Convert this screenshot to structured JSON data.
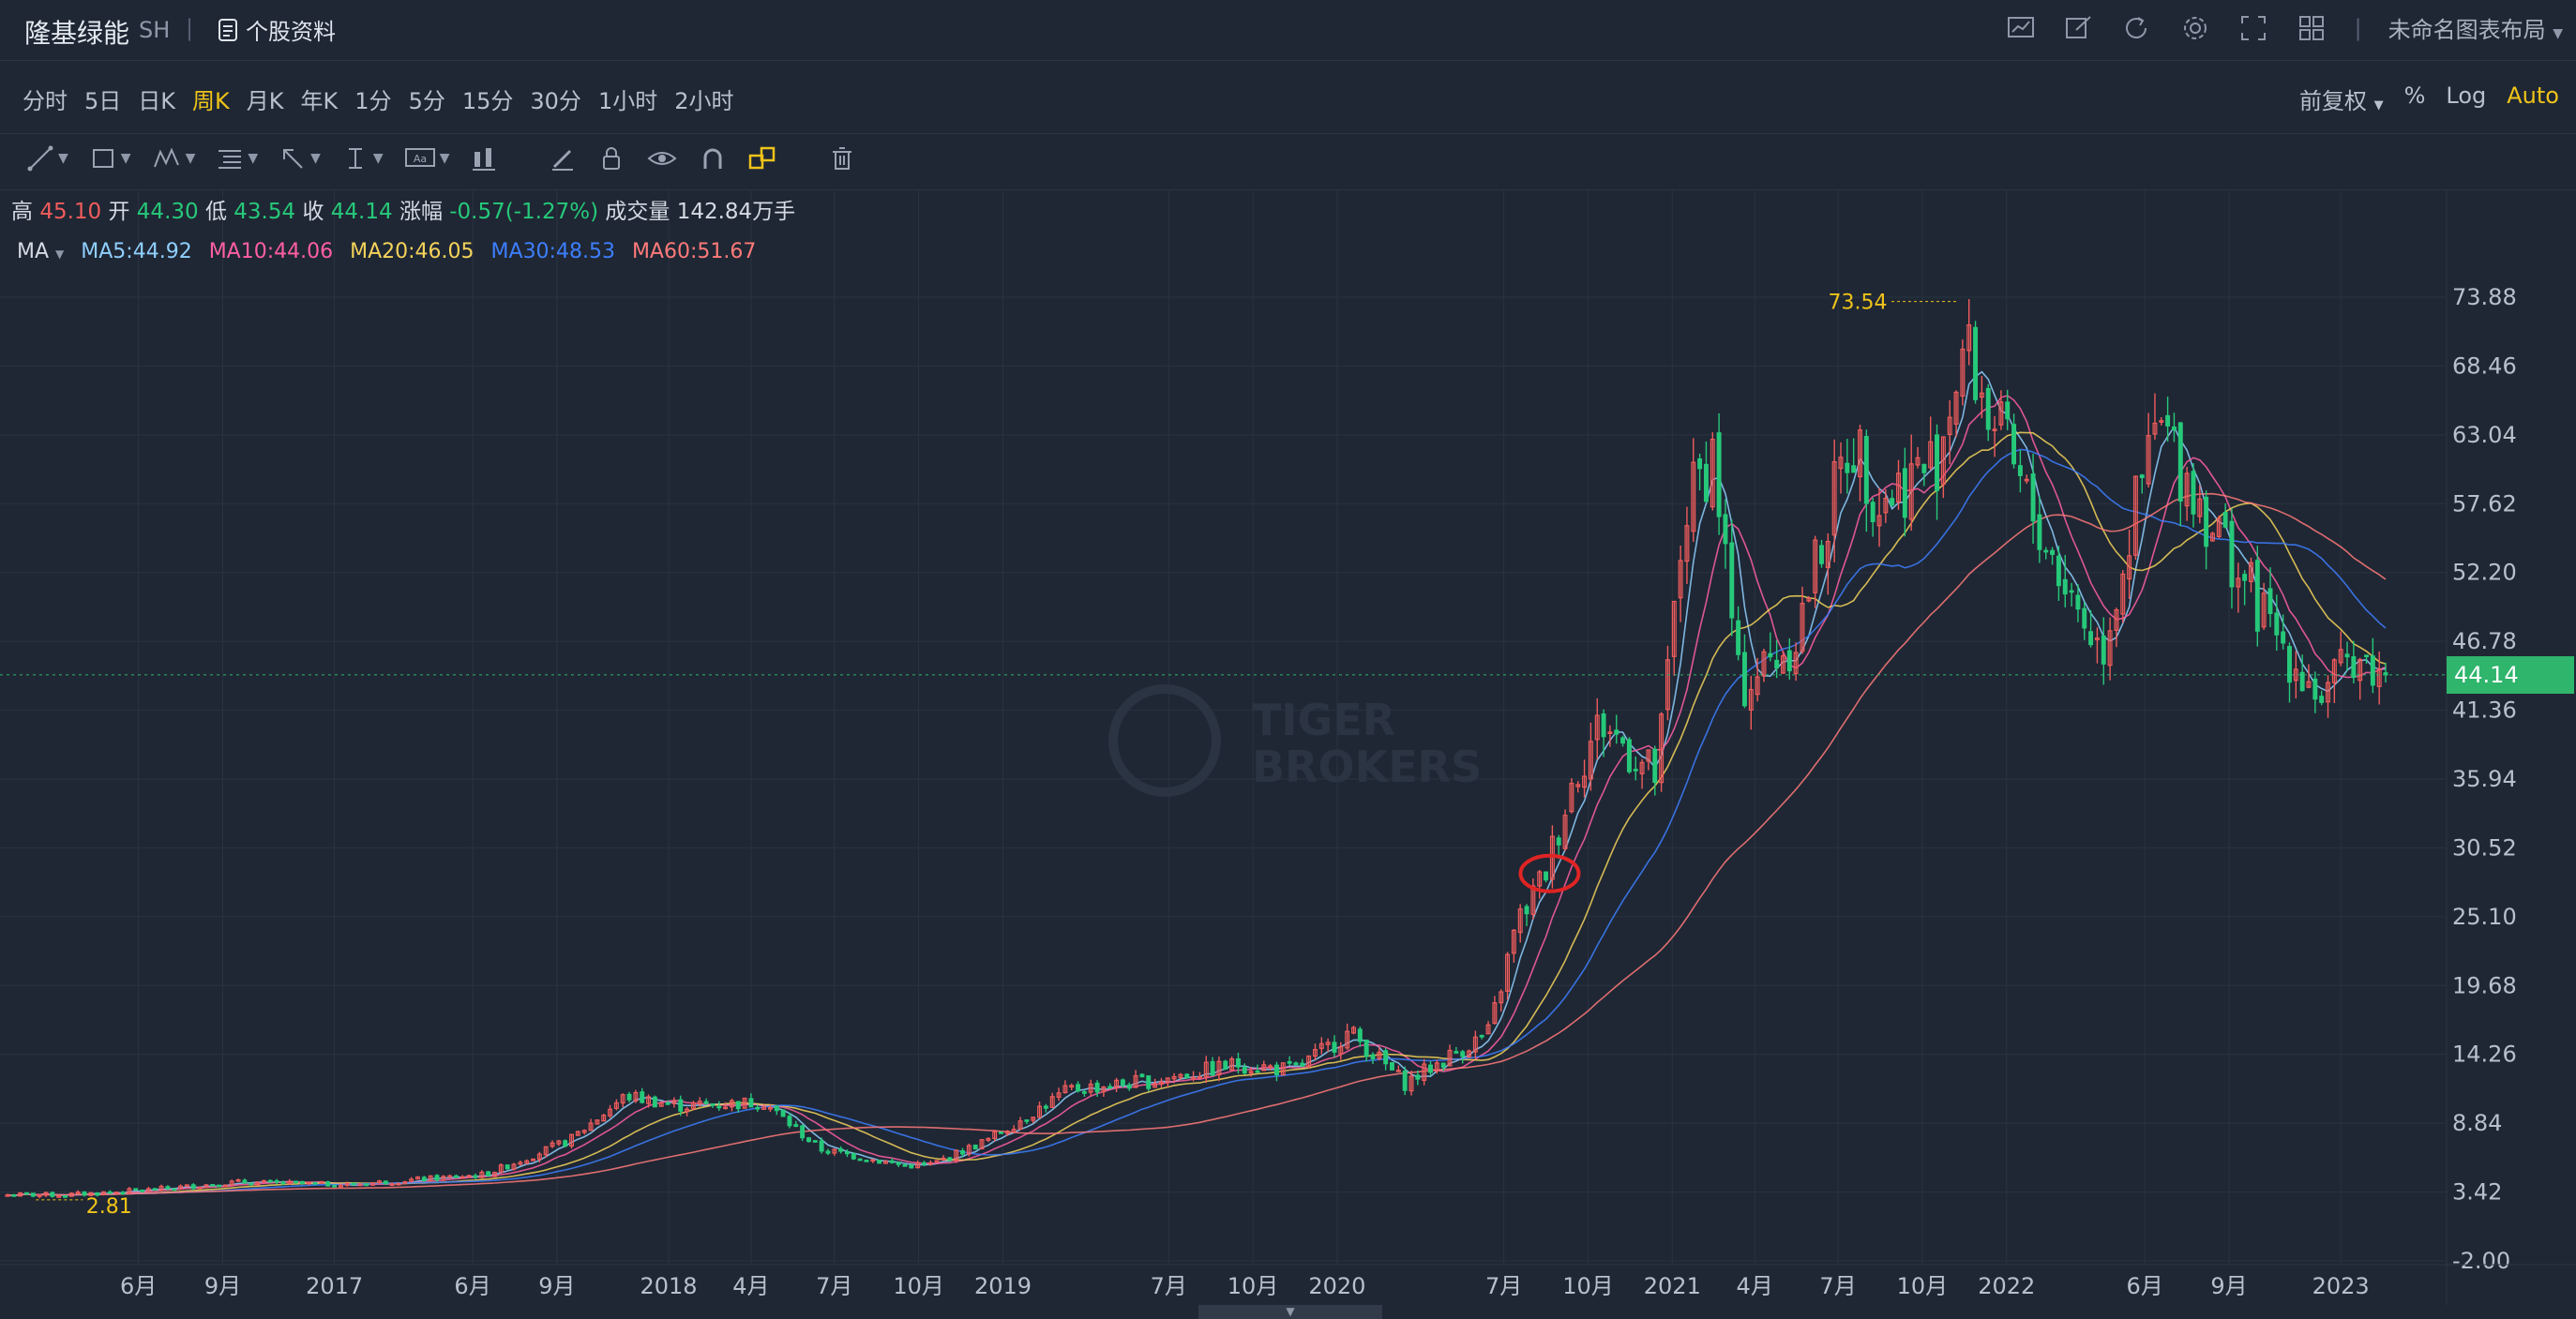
{
  "header": {
    "stock_name": "隆基绿能",
    "market": "SH",
    "separator": "|",
    "profile_label": "个股资料",
    "layout_name": "未命名图表布局",
    "icons": [
      "chart-icon",
      "edit-icon",
      "refresh-icon",
      "settings-icon",
      "fullscreen-icon",
      "grid-layout-icon"
    ]
  },
  "timeframes": {
    "items": [
      "分时",
      "5日",
      "日K",
      "周K",
      "月K",
      "年K",
      "1分",
      "5分",
      "15分",
      "30分",
      "1小时",
      "2小时"
    ],
    "active": "周K",
    "adjust_label": "前复权",
    "percent_label": "%",
    "log_label": "Log",
    "auto_label": "Auto"
  },
  "toolbar": {
    "icons": [
      "trend-line-icon",
      "rectangle-icon",
      "pattern-icon",
      "fibonacci-icon",
      "arrow-icon",
      "text-cursor-icon",
      "text-label-icon",
      "candle-type-icon",
      "pencil-icon",
      "lock-icon",
      "eye-icon",
      "magnet-icon",
      "link-shapes-icon",
      "trash-icon"
    ]
  },
  "ohlc": {
    "high_label": "高",
    "high": "45.10",
    "open_label": "开",
    "open": "44.30",
    "low_label": "低",
    "low": "43.54",
    "close_label": "收",
    "close": "44.14",
    "change_label": "涨幅",
    "change": "-0.57(-1.27%)",
    "volume_label": "成交量",
    "volume": "142.84万手"
  },
  "indicator": {
    "name": "MA",
    "lines": [
      {
        "label": "MA5:44.92",
        "color": "#8fd0ff"
      },
      {
        "label": "MA10:44.06",
        "color": "#ff5fa2"
      },
      {
        "label": "MA20:46.05",
        "color": "#f5d35a"
      },
      {
        "label": "MA30:48.53",
        "color": "#3d7fff"
      },
      {
        "label": "MA60:51.67",
        "color": "#ff7a7a"
      }
    ]
  },
  "colors": {
    "up": "#f05c5c",
    "down": "#26c97a",
    "accent": "#f0c419",
    "last_price_bg": "#2fb56c"
  },
  "watermark": {
    "line1": "TIGER",
    "line2": "BROKERS"
  },
  "chart_data": {
    "type": "candlestick",
    "interval": "weekly",
    "x_tick_labels": [
      "6月",
      "9月",
      "2017",
      "6月",
      "9月",
      "2018",
      "4月",
      "7月",
      "10月",
      "2019",
      "7月",
      "10月",
      "2020",
      "7月",
      "10月",
      "2021",
      "4月",
      "7月",
      "10月",
      "2022",
      "6月",
      "9月",
      "2023"
    ],
    "y_tick_labels": [
      "73.88",
      "68.46",
      "63.04",
      "57.62",
      "52.20",
      "46.78",
      "41.36",
      "35.94",
      "30.52",
      "25.10",
      "19.68",
      "14.26",
      "8.84",
      "3.42",
      "-2.00"
    ],
    "ylim": [
      -2.0,
      73.88
    ],
    "high_marker": "73.54",
    "low_marker": "2.81",
    "last_price": "44.14",
    "highlighted_region": "red circle around the 2020年8月 candles near 28",
    "series_close_approx": [
      {
        "date": "2016-03",
        "close": 3.2
      },
      {
        "date": "2016-06",
        "close": 3.6
      },
      {
        "date": "2016-09",
        "close": 4.2
      },
      {
        "date": "2017-01",
        "close": 4.0
      },
      {
        "date": "2017-06",
        "close": 4.8
      },
      {
        "date": "2017-09",
        "close": 7.5
      },
      {
        "date": "2017-11",
        "close": 11.0
      },
      {
        "date": "2018-01",
        "close": 10.2
      },
      {
        "date": "2018-04",
        "close": 10.5
      },
      {
        "date": "2018-06",
        "close": 6.8
      },
      {
        "date": "2018-09",
        "close": 5.5
      },
      {
        "date": "2018-10",
        "close": 5.6
      },
      {
        "date": "2018-12",
        "close": 7.5
      },
      {
        "date": "2019-03",
        "close": 11.5
      },
      {
        "date": "2019-06",
        "close": 12.2
      },
      {
        "date": "2019-09",
        "close": 13.5
      },
      {
        "date": "2019-11",
        "close": 13.0
      },
      {
        "date": "2020-01",
        "close": 16.0
      },
      {
        "date": "2020-03",
        "close": 12.0
      },
      {
        "date": "2020-06",
        "close": 16.0
      },
      {
        "date": "2020-07",
        "close": 24.5
      },
      {
        "date": "2020-08",
        "close": 28.5
      },
      {
        "date": "2020-09",
        "close": 36.0
      },
      {
        "date": "2020-10",
        "close": 40.5
      },
      {
        "date": "2020-12",
        "close": 36.0
      },
      {
        "date": "2021-01",
        "close": 57.0
      },
      {
        "date": "2021-02",
        "close": 62.0
      },
      {
        "date": "2021-03",
        "close": 43.0
      },
      {
        "date": "2021-05",
        "close": 47.0
      },
      {
        "date": "2021-07",
        "close": 63.0
      },
      {
        "date": "2021-08",
        "close": 58.0
      },
      {
        "date": "2021-10",
        "close": 61.0
      },
      {
        "date": "2021-11",
        "close": 70.0
      },
      {
        "date": "2022-01",
        "close": 59.0
      },
      {
        "date": "2022-03",
        "close": 50.0
      },
      {
        "date": "2022-04",
        "close": 46.0
      },
      {
        "date": "2022-05",
        "close": 55.0
      },
      {
        "date": "2022-06",
        "close": 64.0
      },
      {
        "date": "2022-08",
        "close": 56.0
      },
      {
        "date": "2022-10",
        "close": 48.0
      },
      {
        "date": "2022-12",
        "close": 42.0
      },
      {
        "date": "2023-01",
        "close": 46.0
      },
      {
        "date": "2023-02",
        "close": 44.14
      }
    ]
  }
}
